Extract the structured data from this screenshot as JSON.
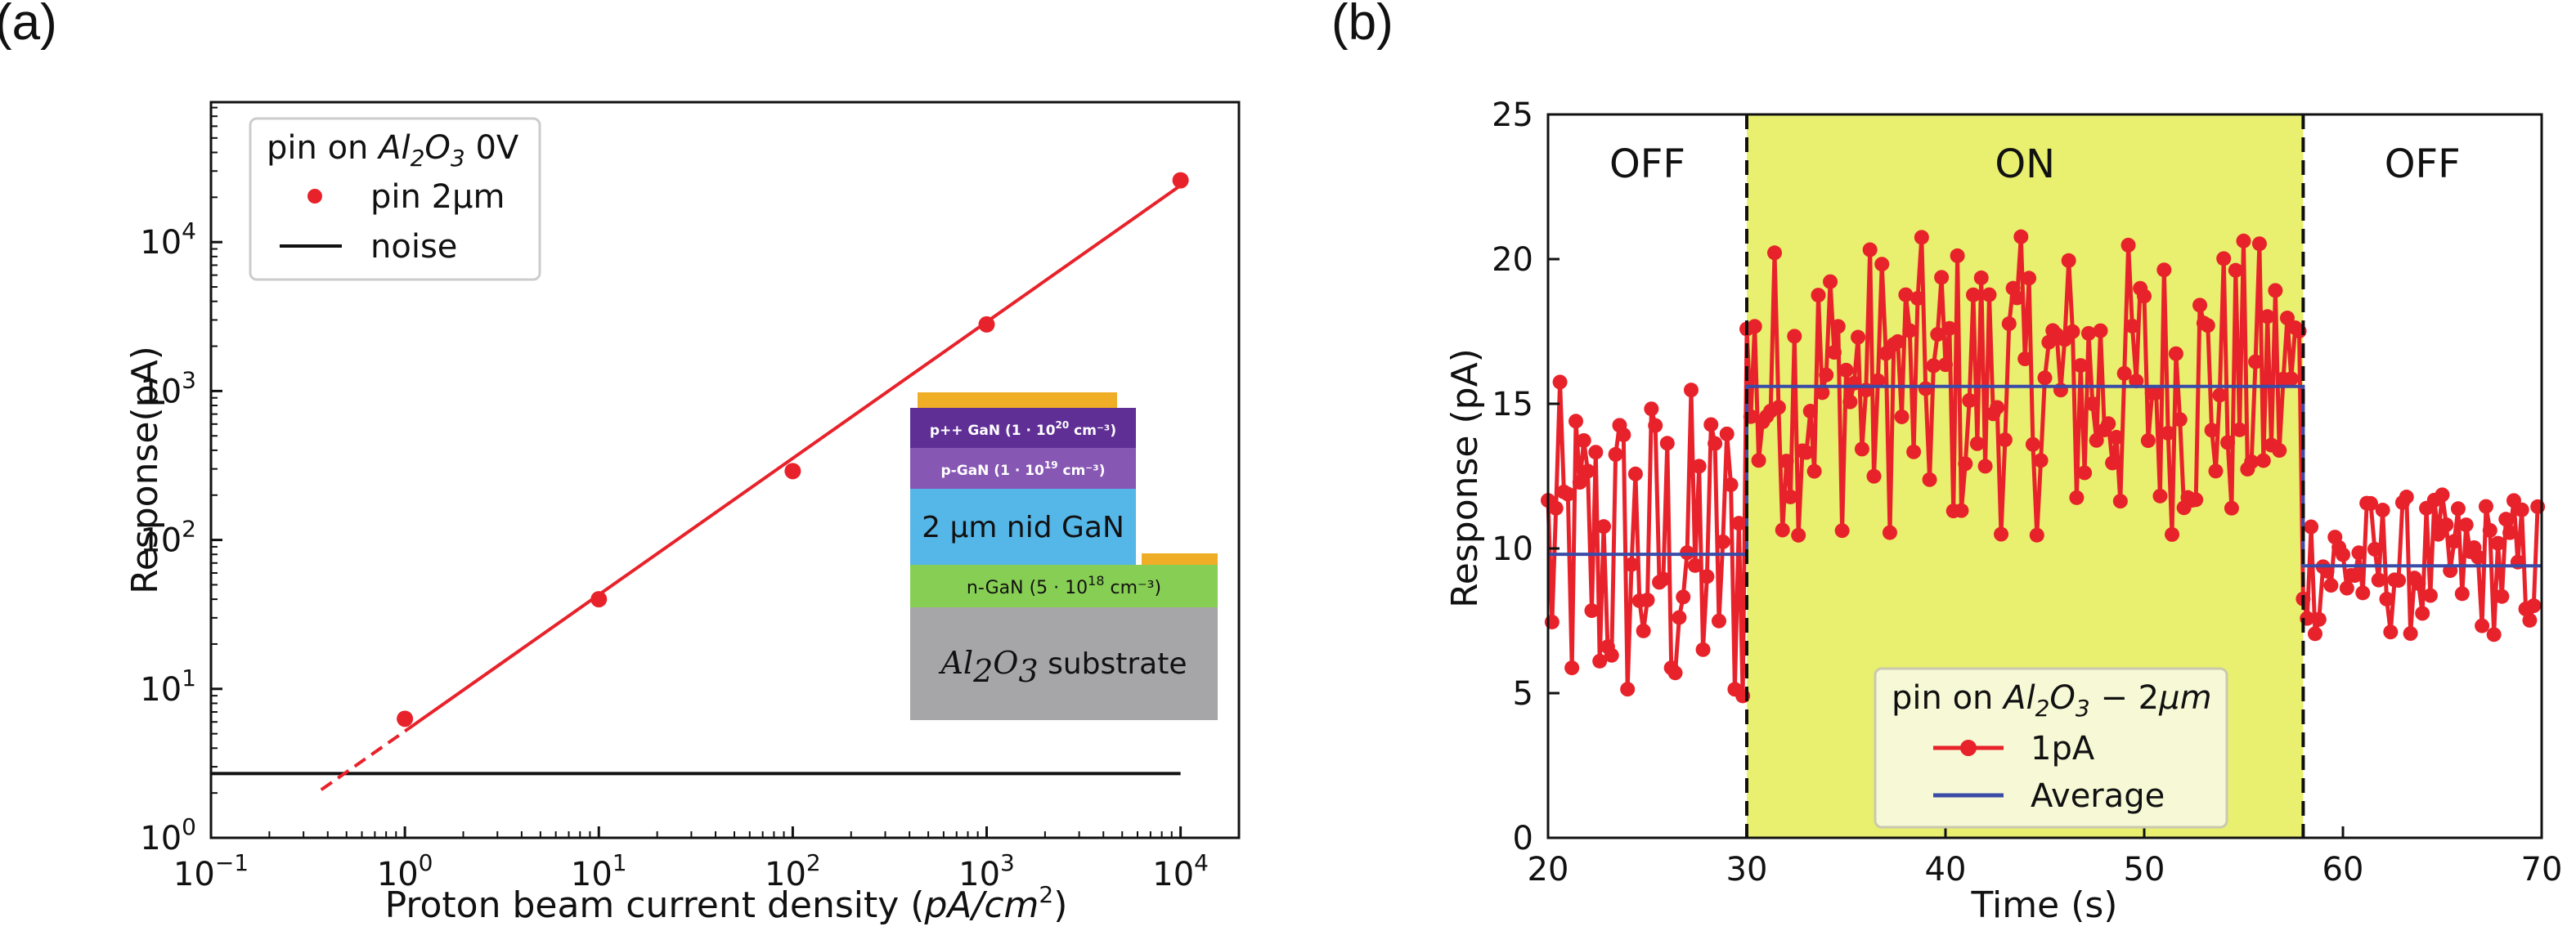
{
  "panel_labels": {
    "a": "(a)",
    "b": "(b)"
  },
  "colors": {
    "data_red": "#e8222a",
    "average_blue": "#3a4ba8",
    "noise_black": "#111111",
    "on_region_yellow": "#e9ef6e",
    "legend_b_bg": "#f7f9d6",
    "layer_contact": "#f0ae27",
    "layer_ppp": "#5f2f96",
    "layer_p": "#8757b4",
    "layer_nid": "#55b6e8",
    "layer_n": "#87cf54",
    "layer_substrate": "#a6a6a8"
  },
  "chart_data": [
    {
      "id": "a",
      "type": "scatter",
      "title": "",
      "xlabel": "Proton beam current density (pA/cm²)",
      "xlabel_parts": {
        "main": "Proton beam current density (",
        "italic": "pA/cm",
        "sup": "2",
        "end": ")"
      },
      "ylabel": "Response(pA)",
      "xscale": "log",
      "yscale": "log",
      "xlim": [
        0.1,
        20000
      ],
      "ylim": [
        1,
        87000
      ],
      "xticks": [
        {
          "value": 0.1,
          "base": "10",
          "exp": "−1"
        },
        {
          "value": 1,
          "base": "10",
          "exp": "0"
        },
        {
          "value": 10,
          "base": "10",
          "exp": "1"
        },
        {
          "value": 100,
          "base": "10",
          "exp": "2"
        },
        {
          "value": 1000,
          "base": "10",
          "exp": "3"
        },
        {
          "value": 10000,
          "base": "10",
          "exp": "4"
        }
      ],
      "yticks": [
        {
          "value": 1,
          "base": "10",
          "exp": "0"
        },
        {
          "value": 10,
          "base": "10",
          "exp": "1"
        },
        {
          "value": 100,
          "base": "10",
          "exp": "2"
        },
        {
          "value": 1000,
          "base": "10",
          "exp": "3"
        },
        {
          "value": 10000,
          "base": "10",
          "exp": "4"
        }
      ],
      "series": [
        {
          "name": "pin 2µm",
          "kind": "points",
          "x": [
            1,
            10,
            100,
            1000,
            10000
          ],
          "y": [
            6.3,
            40,
            290,
            2800,
            26000
          ]
        },
        {
          "name": "fit",
          "kind": "line",
          "solid_x": [
            1,
            10000
          ],
          "solid_y": [
            5.2,
            24000
          ],
          "dashed_x": [
            0.37,
            1
          ],
          "dashed_y": [
            2.1,
            5.2
          ]
        },
        {
          "name": "noise",
          "kind": "hline",
          "y": 2.7,
          "x_range": [
            0.1,
            10000
          ]
        }
      ],
      "legend": {
        "placement": "top-left",
        "title_parts": {
          "pre": "pin on ",
          "a": "Al",
          "sub1": "2",
          "o": "O",
          "sub2": "3",
          "post": " 0V"
        },
        "entries": [
          {
            "label": "pin 2µm",
            "marker": "dot"
          },
          {
            "label": "noise",
            "marker": "line"
          }
        ]
      },
      "inset": {
        "description": "pin diode layer stack",
        "layers": [
          {
            "name": "p++ GaN",
            "base": "p++ GaN (1 · 10",
            "sup": "20",
            "end": " cm⁻³)"
          },
          {
            "name": "p-GaN",
            "base": "p-GaN (1 · 10",
            "sup": "19",
            "end": " cm⁻³)"
          },
          {
            "name": "nid GaN",
            "text": "2 µm nid GaN"
          },
          {
            "name": "n-GaN",
            "base": "n-GaN (5 · 10",
            "sup": "18",
            "end": " cm⁻³)"
          },
          {
            "name": "substrate",
            "a": "Al",
            "sub1": "2",
            "o": "O",
            "sub2": "3",
            "text": " substrate"
          }
        ]
      }
    },
    {
      "id": "b",
      "type": "line",
      "title": "",
      "xlabel": "Time (s)",
      "ylabel": "Response (pA)",
      "xlim": [
        20,
        70
      ],
      "ylim": [
        0,
        25
      ],
      "xticks": [
        20,
        30,
        40,
        50,
        60,
        70
      ],
      "yticks": [
        0,
        5,
        10,
        15,
        20,
        25
      ],
      "regions": [
        {
          "label": "OFF",
          "x_range": [
            20,
            30
          ],
          "shaded": false
        },
        {
          "label": "ON",
          "x_range": [
            30,
            58
          ],
          "shaded": true
        },
        {
          "label": "OFF",
          "x_range": [
            58,
            70
          ],
          "shaded": false
        }
      ],
      "boundaries": [
        30,
        58
      ],
      "sample_interval_s": 0.2,
      "series": [
        {
          "name": "1pA",
          "marker": "o",
          "segments": [
            {
              "x_start": 20,
              "x_end": 30,
              "mean": 9.8,
              "amplitude": 6.0
            },
            {
              "x_start": 30,
              "x_end": 58,
              "mean": 15.6,
              "amplitude": 5.2
            },
            {
              "x_start": 58,
              "x_end": 70,
              "mean": 9.4,
              "amplitude": 2.5
            }
          ]
        },
        {
          "name": "Average",
          "marker": "none",
          "steps": [
            {
              "x_start": 20,
              "x_end": 30,
              "y": 9.8
            },
            {
              "x_start": 30,
              "x_end": 58,
              "y": 15.6
            },
            {
              "x_start": 58,
              "x_end": 70,
              "y": 9.4
            }
          ]
        }
      ],
      "legend": {
        "placement": "bottom-center",
        "title_parts": {
          "pre": "pin on ",
          "a": "Al",
          "sub1": "2",
          "o": "O",
          "sub2": "3",
          "post": " − 2",
          "mu": "µm"
        },
        "entries": [
          {
            "label": "1pA",
            "marker": "line-dot"
          },
          {
            "label": "Average",
            "marker": "line"
          }
        ]
      }
    }
  ]
}
